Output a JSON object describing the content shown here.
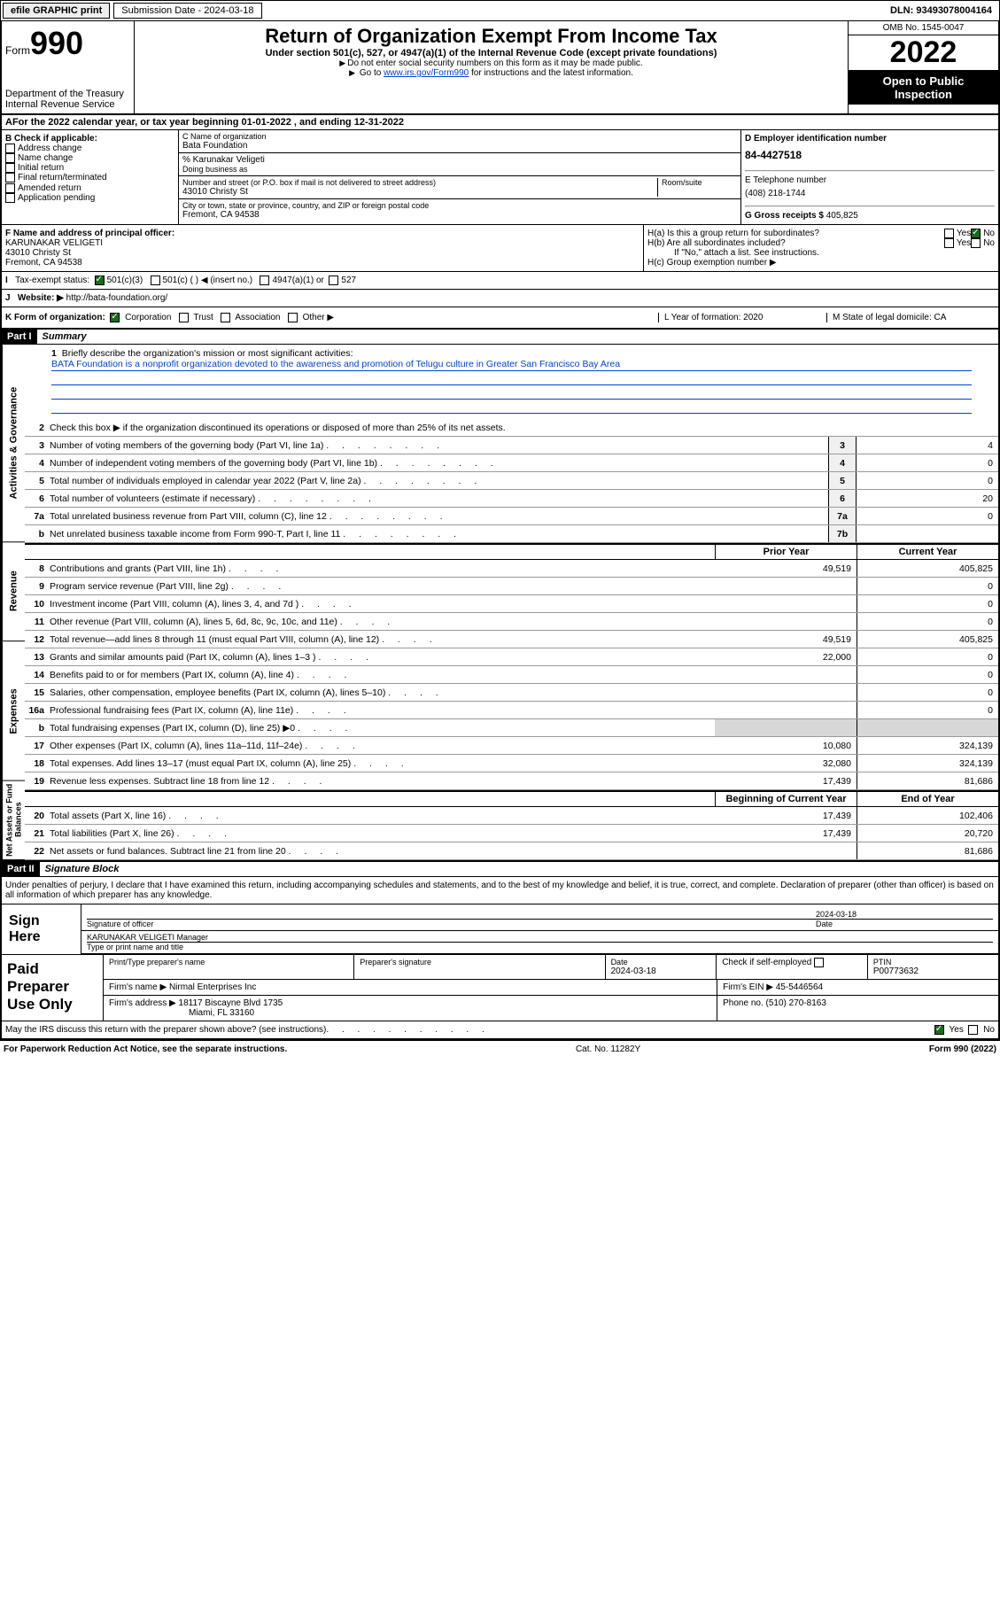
{
  "topbar": {
    "efile": "efile GRAPHIC print",
    "submission": "Submission Date - 2024-03-18",
    "dln": "DLN: 93493078004164"
  },
  "header": {
    "form_prefix": "Form",
    "form_num": "990",
    "dept1": "Department of the Treasury",
    "dept2": "Internal Revenue Service",
    "title": "Return of Organization Exempt From Income Tax",
    "sub": "Under section 501(c), 527, or 4947(a)(1) of the Internal Revenue Code (except private foundations)",
    "note1": "Do not enter social security numbers on this form as it may be made public.",
    "note2a": "Go to ",
    "note2_link": "www.irs.gov/Form990",
    "note2b": " for instructions and the latest information.",
    "omb": "OMB No. 1545-0047",
    "year": "2022",
    "inspect1": "Open to Public",
    "inspect2": "Inspection"
  },
  "A": {
    "text": "For the 2022 calendar year, or tax year beginning 01-01-2022    , and ending 12-31-2022"
  },
  "B": {
    "label": "B Check if applicable:",
    "opts": [
      "Address change",
      "Name change",
      "Initial return",
      "Final return/terminated",
      "Amended return",
      "Application pending"
    ]
  },
  "C": {
    "name_label": "C Name of organization",
    "name": "Bata Foundation",
    "care_label": "% Karunakar Veligeti",
    "dba_label": "Doing business as",
    "addr_label": "Number and street (or P.O. box if mail is not delivered to street address)",
    "room_label": "Room/suite",
    "addr": "43010 Christy St",
    "city_label": "City or town, state or province, country, and ZIP or foreign postal code",
    "city": "Fremont, CA  94538"
  },
  "D": {
    "label": "D Employer identification number",
    "ein": "84-4427518",
    "E_label": "E Telephone number",
    "phone": "(408) 218-1744",
    "G_label": "G Gross receipts $",
    "gross": "405,825"
  },
  "F": {
    "label": "F Name and address of principal officer:",
    "name": "KARUNAKAR VELIGETI",
    "addr1": "43010 Christy St",
    "addr2": "Fremont, CA  94538"
  },
  "H": {
    "a": "H(a)  Is this a group return for subordinates?",
    "b": "H(b)  Are all subordinates included?",
    "note": "If \"No,\" attach a list. See instructions.",
    "c": "H(c)  Group exemption number ▶",
    "yes": "Yes",
    "no": "No"
  },
  "I": {
    "label": "Tax-exempt status:",
    "o1": "501(c)(3)",
    "o2": "501(c) (   ) ◀ (insert no.)",
    "o3": "4947(a)(1) or",
    "o4": "527"
  },
  "J": {
    "label": "Website: ▶",
    "val": "http://bata-foundation.org/"
  },
  "K": {
    "label": "K Form of organization:",
    "o1": "Corporation",
    "o2": "Trust",
    "o3": "Association",
    "o4": "Other ▶",
    "L": "L Year of formation: 2020",
    "M": "M State of legal domicile: CA"
  },
  "partI": {
    "hdr": "Part I",
    "title": "Summary",
    "l1_label": "Briefly describe the organization's mission or most significant activities:",
    "l1_text": "BATA Foundation is a nonprofit organization devoted to the awareness and promotion of Telugu culture in Greater San Francisco Bay Area",
    "l2": "Check this box ▶       if the organization discontinued its operations or disposed of more than 25% of its net assets.",
    "lines": [
      {
        "n": "3",
        "label": "Number of voting members of the governing body (Part VI, line 1a)",
        "box": "3",
        "v": "4"
      },
      {
        "n": "4",
        "label": "Number of independent voting members of the governing body (Part VI, line 1b)",
        "box": "4",
        "v": "0"
      },
      {
        "n": "5",
        "label": "Total number of individuals employed in calendar year 2022 (Part V, line 2a)",
        "box": "5",
        "v": "0"
      },
      {
        "n": "6",
        "label": "Total number of volunteers (estimate if necessary)",
        "box": "6",
        "v": "20"
      },
      {
        "n": "7a",
        "label": "Total unrelated business revenue from Part VIII, column (C), line 12",
        "box": "7a",
        "v": "0"
      },
      {
        "n": "b",
        "label": "Net unrelated business taxable income from Form 990-T, Part I, line 11",
        "box": "7b",
        "v": ""
      }
    ],
    "col_prior": "Prior Year",
    "col_curr": "Current Year",
    "rev": [
      {
        "n": "8",
        "label": "Contributions and grants (Part VIII, line 1h)",
        "p": "49,519",
        "c": "405,825"
      },
      {
        "n": "9",
        "label": "Program service revenue (Part VIII, line 2g)",
        "p": "",
        "c": "0"
      },
      {
        "n": "10",
        "label": "Investment income (Part VIII, column (A), lines 3, 4, and 7d )",
        "p": "",
        "c": "0"
      },
      {
        "n": "11",
        "label": "Other revenue (Part VIII, column (A), lines 5, 6d, 8c, 9c, 10c, and 11e)",
        "p": "",
        "c": "0"
      },
      {
        "n": "12",
        "label": "Total revenue—add lines 8 through 11 (must equal Part VIII, column (A), line 12)",
        "p": "49,519",
        "c": "405,825"
      }
    ],
    "exp": [
      {
        "n": "13",
        "label": "Grants and similar amounts paid (Part IX, column (A), lines 1–3 )",
        "p": "22,000",
        "c": "0"
      },
      {
        "n": "14",
        "label": "Benefits paid to or for members (Part IX, column (A), line 4)",
        "p": "",
        "c": "0"
      },
      {
        "n": "15",
        "label": "Salaries, other compensation, employee benefits (Part IX, column (A), lines 5–10)",
        "p": "",
        "c": "0"
      },
      {
        "n": "16a",
        "label": "Professional fundraising fees (Part IX, column (A), line 11e)",
        "p": "",
        "c": "0"
      },
      {
        "n": "b",
        "label": "Total fundraising expenses (Part IX, column (D), line 25) ▶0",
        "p": "",
        "c": "",
        "shade": true
      },
      {
        "n": "17",
        "label": "Other expenses (Part IX, column (A), lines 11a–11d, 11f–24e)",
        "p": "10,080",
        "c": "324,139"
      },
      {
        "n": "18",
        "label": "Total expenses. Add lines 13–17 (must equal Part IX, column (A), line 25)",
        "p": "32,080",
        "c": "324,139"
      },
      {
        "n": "19",
        "label": "Revenue less expenses. Subtract line 18 from line 12",
        "p": "17,439",
        "c": "81,686"
      }
    ],
    "col_beg": "Beginning of Current Year",
    "col_end": "End of Year",
    "net": [
      {
        "n": "20",
        "label": "Total assets (Part X, line 16)",
        "p": "17,439",
        "c": "102,406"
      },
      {
        "n": "21",
        "label": "Total liabilities (Part X, line 26)",
        "p": "17,439",
        "c": "20,720"
      },
      {
        "n": "22",
        "label": "Net assets or fund balances. Subtract line 21 from line 20",
        "p": "",
        "c": "81,686"
      }
    ],
    "tab1": "Activities & Governance",
    "tab2": "Revenue",
    "tab3": "Expenses",
    "tab4": "Net Assets or Fund Balances"
  },
  "partII": {
    "hdr": "Part II",
    "title": "Signature Block",
    "decl": "Under penalties of perjury, I declare that I have examined this return, including accompanying schedules and statements, and to the best of my knowledge and belief, it is true, correct, and complete. Declaration of preparer (other than officer) is based on all information of which preparer has any knowledge.",
    "sign_here": "Sign Here",
    "sig_officer": "Signature of officer",
    "sig_date": "2024-03-18",
    "date_label": "Date",
    "officer_name": "KARUNAKAR VELIGETI Manager",
    "type_label": "Type or print name and title",
    "paid": "Paid Preparer Use Only",
    "pt_name_label": "Print/Type preparer's name",
    "pt_sig_label": "Preparer's signature",
    "pt_date_label": "Date",
    "pt_date": "2024-03-18",
    "pt_check": "Check        if self-employed",
    "ptin_label": "PTIN",
    "ptin": "P00773632",
    "firm_name_label": "Firm's name    ▶",
    "firm_name": "Nirmal Enterprises Inc",
    "firm_ein_label": "Firm's EIN ▶",
    "firm_ein": "45-5446564",
    "firm_addr_label": "Firm's address ▶",
    "firm_addr1": "18117 Biscayne Blvd 1735",
    "firm_addr2": "Miami, FL  33160",
    "firm_phone_label": "Phone no.",
    "firm_phone": "(510) 270-8163",
    "may_irs": "May the IRS discuss this return with the preparer shown above? (see instructions)"
  },
  "footer": {
    "left": "For Paperwork Reduction Act Notice, see the separate instructions.",
    "mid": "Cat. No. 11282Y",
    "right": "Form 990 (2022)"
  }
}
